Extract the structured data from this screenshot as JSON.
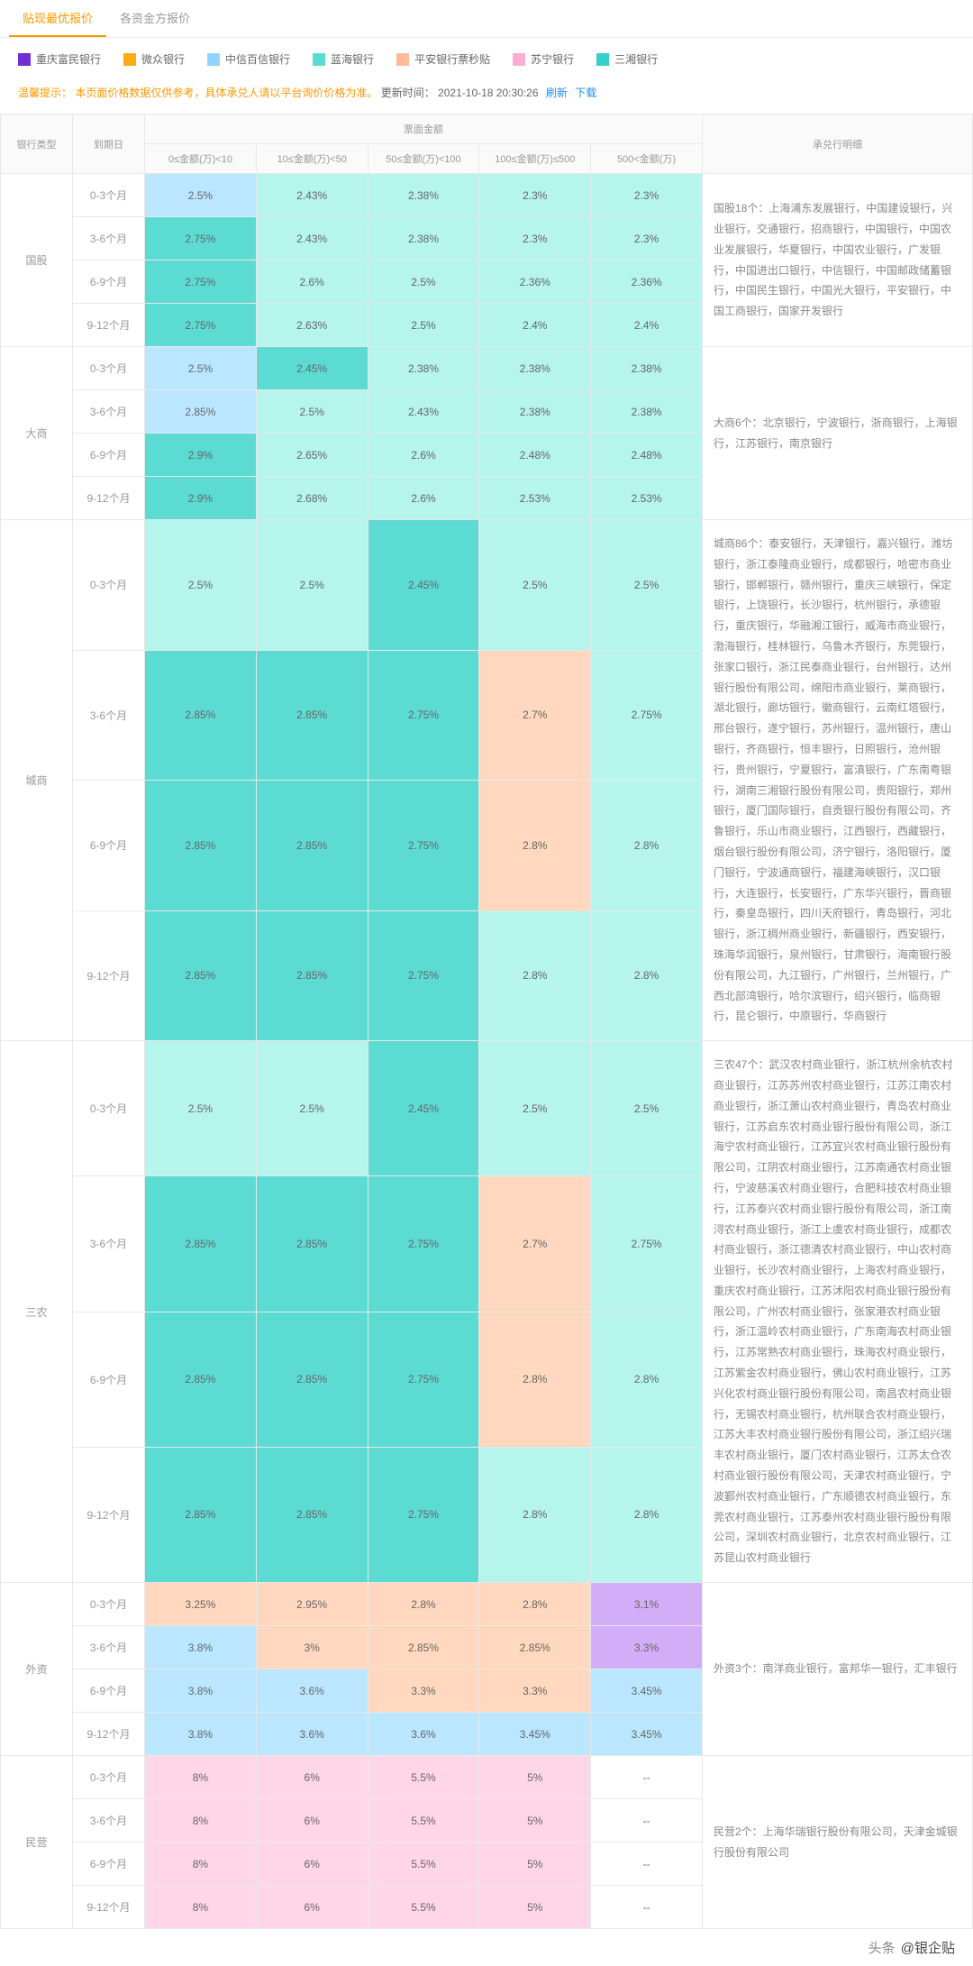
{
  "tabs": [
    {
      "label": "贴现最优报价",
      "active": true
    },
    {
      "label": "各资金方报价",
      "active": false
    }
  ],
  "legend": [
    {
      "label": "重庆富民银行",
      "color": "#722ed1"
    },
    {
      "label": "微众银行",
      "color": "#faad14"
    },
    {
      "label": "中信百信银行",
      "color": "#91d5ff"
    },
    {
      "label": "蓝海银行",
      "color": "#5cdbd3"
    },
    {
      "label": "平安银行票秒贴",
      "color": "#ffbb96"
    },
    {
      "label": "苏宁银行",
      "color": "#ffadd2"
    },
    {
      "label": "三湘银行",
      "color": "#36cfc9"
    }
  ],
  "hint_prefix": "温馨提示：",
  "hint_text": "本页面价格数据仅供参考，具体承兑人请以平台询价价格为准。",
  "update_label": "更新时间：",
  "update_time": "2021-10-18 20:30:26",
  "refresh_label": "刷新",
  "download_label": "下载",
  "headers": {
    "bank_type": "银行类型",
    "period": "到期日",
    "amount_group": "票面金额",
    "amounts": [
      "0≤金额(万)<10",
      "10≤金额(万)<50",
      "50≤金额(万)<100",
      "100≤金额(万)≤500",
      "500<金额(万)"
    ],
    "bank_detail": "承兑行明细"
  },
  "colors": {
    "blue": "#bae7ff",
    "teal_dark": "#5cdbd3",
    "teal": "#b5f5ec",
    "orange": "#ffd8bf",
    "purple": "#d3adf7",
    "pink": "#ffd6e7",
    "none": "#ffffff"
  },
  "groups": [
    {
      "type": "国股",
      "detail": "国股18个：上海浦东发展银行，中国建设银行，兴业银行，交通银行，招商银行，中国银行，中国农业发展银行，华夏银行，中国农业银行，广发银行，中国进出口银行，中信银行，中国邮政储蓄银行，中国民生银行，中国光大银行，平安银行，中国工商银行，国家开发银行",
      "rows": [
        {
          "period": "0-3个月",
          "cells": [
            {
              "v": "2.5%",
              "c": "blue"
            },
            {
              "v": "2.43%",
              "c": "teal"
            },
            {
              "v": "2.38%",
              "c": "teal"
            },
            {
              "v": "2.3%",
              "c": "teal"
            },
            {
              "v": "2.3%",
              "c": "teal"
            }
          ]
        },
        {
          "period": "3-6个月",
          "cells": [
            {
              "v": "2.75%",
              "c": "teal_dark"
            },
            {
              "v": "2.43%",
              "c": "teal"
            },
            {
              "v": "2.38%",
              "c": "teal"
            },
            {
              "v": "2.3%",
              "c": "teal"
            },
            {
              "v": "2.3%",
              "c": "teal"
            }
          ]
        },
        {
          "period": "6-9个月",
          "cells": [
            {
              "v": "2.75%",
              "c": "teal_dark"
            },
            {
              "v": "2.6%",
              "c": "teal"
            },
            {
              "v": "2.5%",
              "c": "teal"
            },
            {
              "v": "2.36%",
              "c": "teal"
            },
            {
              "v": "2.36%",
              "c": "teal"
            }
          ]
        },
        {
          "period": "9-12个月",
          "cells": [
            {
              "v": "2.75%",
              "c": "teal_dark"
            },
            {
              "v": "2.63%",
              "c": "teal"
            },
            {
              "v": "2.5%",
              "c": "teal"
            },
            {
              "v": "2.4%",
              "c": "teal"
            },
            {
              "v": "2.4%",
              "c": "teal"
            }
          ]
        }
      ]
    },
    {
      "type": "大商",
      "detail": "大商6个：北京银行，宁波银行，浙商银行，上海银行，江苏银行，南京银行",
      "rows": [
        {
          "period": "0-3个月",
          "cells": [
            {
              "v": "2.5%",
              "c": "blue"
            },
            {
              "v": "2.45%",
              "c": "teal_dark"
            },
            {
              "v": "2.38%",
              "c": "teal"
            },
            {
              "v": "2.38%",
              "c": "teal"
            },
            {
              "v": "2.38%",
              "c": "teal"
            }
          ]
        },
        {
          "period": "3-6个月",
          "cells": [
            {
              "v": "2.85%",
              "c": "blue"
            },
            {
              "v": "2.5%",
              "c": "teal"
            },
            {
              "v": "2.43%",
              "c": "teal"
            },
            {
              "v": "2.38%",
              "c": "teal"
            },
            {
              "v": "2.38%",
              "c": "teal"
            }
          ]
        },
        {
          "period": "6-9个月",
          "cells": [
            {
              "v": "2.9%",
              "c": "teal_dark"
            },
            {
              "v": "2.65%",
              "c": "teal"
            },
            {
              "v": "2.6%",
              "c": "teal"
            },
            {
              "v": "2.48%",
              "c": "teal"
            },
            {
              "v": "2.48%",
              "c": "teal"
            }
          ]
        },
        {
          "period": "9-12个月",
          "cells": [
            {
              "v": "2.9%",
              "c": "teal_dark"
            },
            {
              "v": "2.68%",
              "c": "teal"
            },
            {
              "v": "2.6%",
              "c": "teal"
            },
            {
              "v": "2.53%",
              "c": "teal"
            },
            {
              "v": "2.53%",
              "c": "teal"
            }
          ]
        }
      ]
    },
    {
      "type": "城商",
      "detail": "城商86个：泰安银行，天津银行，嘉兴银行，潍坊银行，浙江泰隆商业银行，成都银行，哈密市商业银行，邯郸银行，赣州银行，重庆三峡银行，保定银行，上饶银行，长沙银行，杭州银行，承德银行，重庆银行，华融湘江银行，威海市商业银行，渤海银行，桂林银行，乌鲁木齐银行，东莞银行，张家口银行，浙江民泰商业银行，台州银行，达州银行股份有限公司，绵阳市商业银行，莱商银行，湖北银行，廊坊银行，徽商银行，云南红塔银行，邢台银行，遂宁银行，苏州银行，温州银行，唐山银行，齐商银行，恒丰银行，日照银行，沧州银行，贵州银行，宁夏银行，富滇银行，广东南粤银行，湖南三湘银行股份有限公司，贵阳银行，郑州银行，厦门国际银行，自贡银行股份有限公司，齐鲁银行，乐山市商业银行，江西银行，西藏银行，烟台银行股份有限公司，济宁银行，洛阳银行，厦门银行，宁波通商银行，福建海峡银行，汉口银行，大连银行，长安银行，广东华兴银行，晋商银行，秦皇岛银行，四川天府银行，青岛银行，河北银行，浙江稠州商业银行，新疆银行，西安银行，珠海华润银行，泉州银行，甘肃银行，海南银行股份有限公司，九江银行，广州银行，兰州银行，广西北部湾银行，哈尔滨银行，绍兴银行，临商银行，昆仑银行，中原银行，华商银行",
      "rows": [
        {
          "period": "0-3个月",
          "cells": [
            {
              "v": "2.5%",
              "c": "teal"
            },
            {
              "v": "2.5%",
              "c": "teal"
            },
            {
              "v": "2.45%",
              "c": "teal_dark"
            },
            {
              "v": "2.5%",
              "c": "teal"
            },
            {
              "v": "2.5%",
              "c": "teal"
            }
          ]
        },
        {
          "period": "3-6个月",
          "cells": [
            {
              "v": "2.85%",
              "c": "teal_dark"
            },
            {
              "v": "2.85%",
              "c": "teal_dark"
            },
            {
              "v": "2.75%",
              "c": "teal_dark"
            },
            {
              "v": "2.7%",
              "c": "orange"
            },
            {
              "v": "2.75%",
              "c": "teal"
            }
          ]
        },
        {
          "period": "6-9个月",
          "cells": [
            {
              "v": "2.85%",
              "c": "teal_dark"
            },
            {
              "v": "2.85%",
              "c": "teal_dark"
            },
            {
              "v": "2.75%",
              "c": "teal_dark"
            },
            {
              "v": "2.8%",
              "c": "orange"
            },
            {
              "v": "2.8%",
              "c": "teal"
            }
          ]
        },
        {
          "period": "9-12个月",
          "cells": [
            {
              "v": "2.85%",
              "c": "teal_dark"
            },
            {
              "v": "2.85%",
              "c": "teal_dark"
            },
            {
              "v": "2.75%",
              "c": "teal_dark"
            },
            {
              "v": "2.8%",
              "c": "teal"
            },
            {
              "v": "2.8%",
              "c": "teal"
            }
          ]
        }
      ]
    },
    {
      "type": "三农",
      "detail": "三农47个：武汉农村商业银行，浙江杭州余杭农村商业银行，江苏苏州农村商业银行，江苏江南农村商业银行，浙江萧山农村商业银行，青岛农村商业银行，江苏启东农村商业银行股份有限公司，浙江海宁农村商业银行，江苏宜兴农村商业银行股份有限公司，江阴农村商业银行，江苏南通农村商业银行，宁波慈溪农村商业银行，合肥科技农村商业银行，江苏泰兴农村商业银行股份有限公司，浙江南浔农村商业银行，浙江上虞农村商业银行，成都农村商业银行，浙江德清农村商业银行，中山农村商业银行，长沙农村商业银行，上海农村商业银行，重庆农村商业银行，江苏沭阳农村商业银行股份有限公司，广州农村商业银行，张家港农村商业银行，浙江温岭农村商业银行，广东南海农村商业银行，江苏常熟农村商业银行，珠海农村商业银行，江苏紫金农村商业银行，佛山农村商业银行，江苏兴化农村商业银行股份有限公司，南昌农村商业银行，无锡农村商业银行，杭州联合农村商业银行，江苏大丰农村商业银行股份有限公司，浙江绍兴瑞丰农村商业银行，厦门农村商业银行，江苏太仓农村商业银行股份有限公司，天津农村商业银行，宁波鄞州农村商业银行，广东顺德农村商业银行，东莞农村商业银行，江苏泰州农村商业银行股份有限公司，深圳农村商业银行，北京农村商业银行，江苏昆山农村商业银行",
      "rows": [
        {
          "period": "0-3个月",
          "cells": [
            {
              "v": "2.5%",
              "c": "teal"
            },
            {
              "v": "2.5%",
              "c": "teal"
            },
            {
              "v": "2.45%",
              "c": "teal_dark"
            },
            {
              "v": "2.5%",
              "c": "teal"
            },
            {
              "v": "2.5%",
              "c": "teal"
            }
          ]
        },
        {
          "period": "3-6个月",
          "cells": [
            {
              "v": "2.85%",
              "c": "teal_dark"
            },
            {
              "v": "2.85%",
              "c": "teal_dark"
            },
            {
              "v": "2.75%",
              "c": "teal_dark"
            },
            {
              "v": "2.7%",
              "c": "orange"
            },
            {
              "v": "2.75%",
              "c": "teal"
            }
          ]
        },
        {
          "period": "6-9个月",
          "cells": [
            {
              "v": "2.85%",
              "c": "teal_dark"
            },
            {
              "v": "2.85%",
              "c": "teal_dark"
            },
            {
              "v": "2.75%",
              "c": "teal_dark"
            },
            {
              "v": "2.8%",
              "c": "orange"
            },
            {
              "v": "2.8%",
              "c": "teal"
            }
          ]
        },
        {
          "period": "9-12个月",
          "cells": [
            {
              "v": "2.85%",
              "c": "teal_dark"
            },
            {
              "v": "2.85%",
              "c": "teal_dark"
            },
            {
              "v": "2.75%",
              "c": "teal_dark"
            },
            {
              "v": "2.8%",
              "c": "teal"
            },
            {
              "v": "2.8%",
              "c": "teal"
            }
          ]
        }
      ]
    },
    {
      "type": "外资",
      "detail": "外资3个：南洋商业银行，富邦华一银行，汇丰银行",
      "rows": [
        {
          "period": "0-3个月",
          "cells": [
            {
              "v": "3.25%",
              "c": "orange"
            },
            {
              "v": "2.95%",
              "c": "orange"
            },
            {
              "v": "2.8%",
              "c": "orange"
            },
            {
              "v": "2.8%",
              "c": "orange"
            },
            {
              "v": "3.1%",
              "c": "purple"
            }
          ]
        },
        {
          "period": "3-6个月",
          "cells": [
            {
              "v": "3.8%",
              "c": "blue"
            },
            {
              "v": "3%",
              "c": "orange"
            },
            {
              "v": "2.85%",
              "c": "orange"
            },
            {
              "v": "2.85%",
              "c": "orange"
            },
            {
              "v": "3.3%",
              "c": "purple"
            }
          ]
        },
        {
          "period": "6-9个月",
          "cells": [
            {
              "v": "3.8%",
              "c": "blue"
            },
            {
              "v": "3.6%",
              "c": "blue"
            },
            {
              "v": "3.3%",
              "c": "orange"
            },
            {
              "v": "3.3%",
              "c": "orange"
            },
            {
              "v": "3.45%",
              "c": "blue"
            }
          ]
        },
        {
          "period": "9-12个月",
          "cells": [
            {
              "v": "3.8%",
              "c": "blue"
            },
            {
              "v": "3.6%",
              "c": "blue"
            },
            {
              "v": "3.6%",
              "c": "blue"
            },
            {
              "v": "3.45%",
              "c": "blue"
            },
            {
              "v": "3.45%",
              "c": "blue"
            }
          ]
        }
      ]
    },
    {
      "type": "民营",
      "detail": "民营2个：上海华瑞银行股份有限公司，天津金城银行股份有限公司",
      "rows": [
        {
          "period": "0-3个月",
          "cells": [
            {
              "v": "8%",
              "c": "pink"
            },
            {
              "v": "6%",
              "c": "pink"
            },
            {
              "v": "5.5%",
              "c": "pink"
            },
            {
              "v": "5%",
              "c": "pink"
            },
            {
              "v": "--",
              "c": "none"
            }
          ]
        },
        {
          "period": "3-6个月",
          "cells": [
            {
              "v": "8%",
              "c": "pink"
            },
            {
              "v": "6%",
              "c": "pink"
            },
            {
              "v": "5.5%",
              "c": "pink"
            },
            {
              "v": "5%",
              "c": "pink"
            },
            {
              "v": "--",
              "c": "none"
            }
          ]
        },
        {
          "period": "6-9个月",
          "cells": [
            {
              "v": "8%",
              "c": "pink"
            },
            {
              "v": "6%",
              "c": "pink"
            },
            {
              "v": "5.5%",
              "c": "pink"
            },
            {
              "v": "5%",
              "c": "pink"
            },
            {
              "v": "--",
              "c": "none"
            }
          ]
        },
        {
          "period": "9-12个月",
          "cells": [
            {
              "v": "8%",
              "c": "pink"
            },
            {
              "v": "6%",
              "c": "pink"
            },
            {
              "v": "5.5%",
              "c": "pink"
            },
            {
              "v": "5%",
              "c": "pink"
            },
            {
              "v": "--",
              "c": "none"
            }
          ]
        }
      ]
    }
  ],
  "footer_prefix": "头条",
  "footer_author": "@银企贴"
}
